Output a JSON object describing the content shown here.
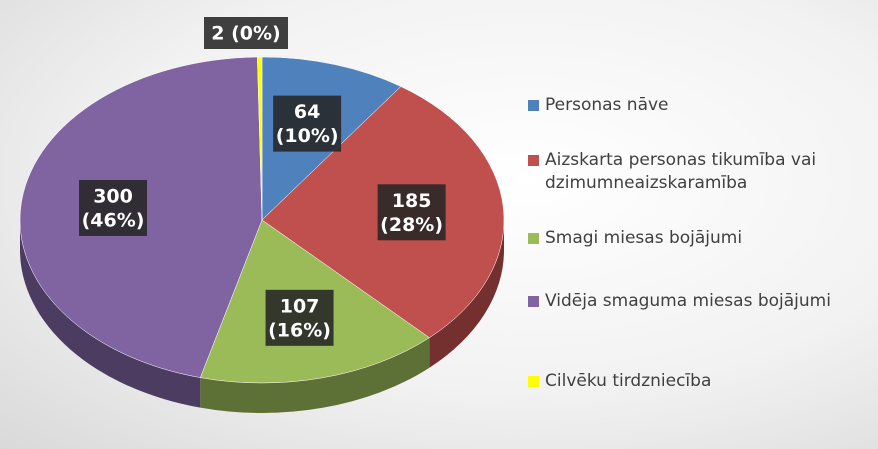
{
  "chart_data": {
    "type": "pie",
    "categories": [
      "Personas nāve",
      "Aizskarta personas tikumība vai dzimumneaizskaramība",
      "Smagi miesas bojājumi",
      "Vidēja smaguma miesas bojājumi",
      "Cilvēku tirdzniecība"
    ],
    "values": [
      64,
      185,
      107,
      300,
      2
    ],
    "value_labels": [
      [
        "64",
        "(10%)"
      ],
      [
        "185",
        "(28%)"
      ],
      [
        "107",
        "(16%)"
      ],
      [
        "300",
        "(46%)"
      ],
      [
        "2 (0%)"
      ]
    ],
    "colors": [
      "#4f81bd",
      "#c0504d",
      "#9bbb59",
      "#8064a2",
      "#ffff00"
    ],
    "legend": "right"
  }
}
